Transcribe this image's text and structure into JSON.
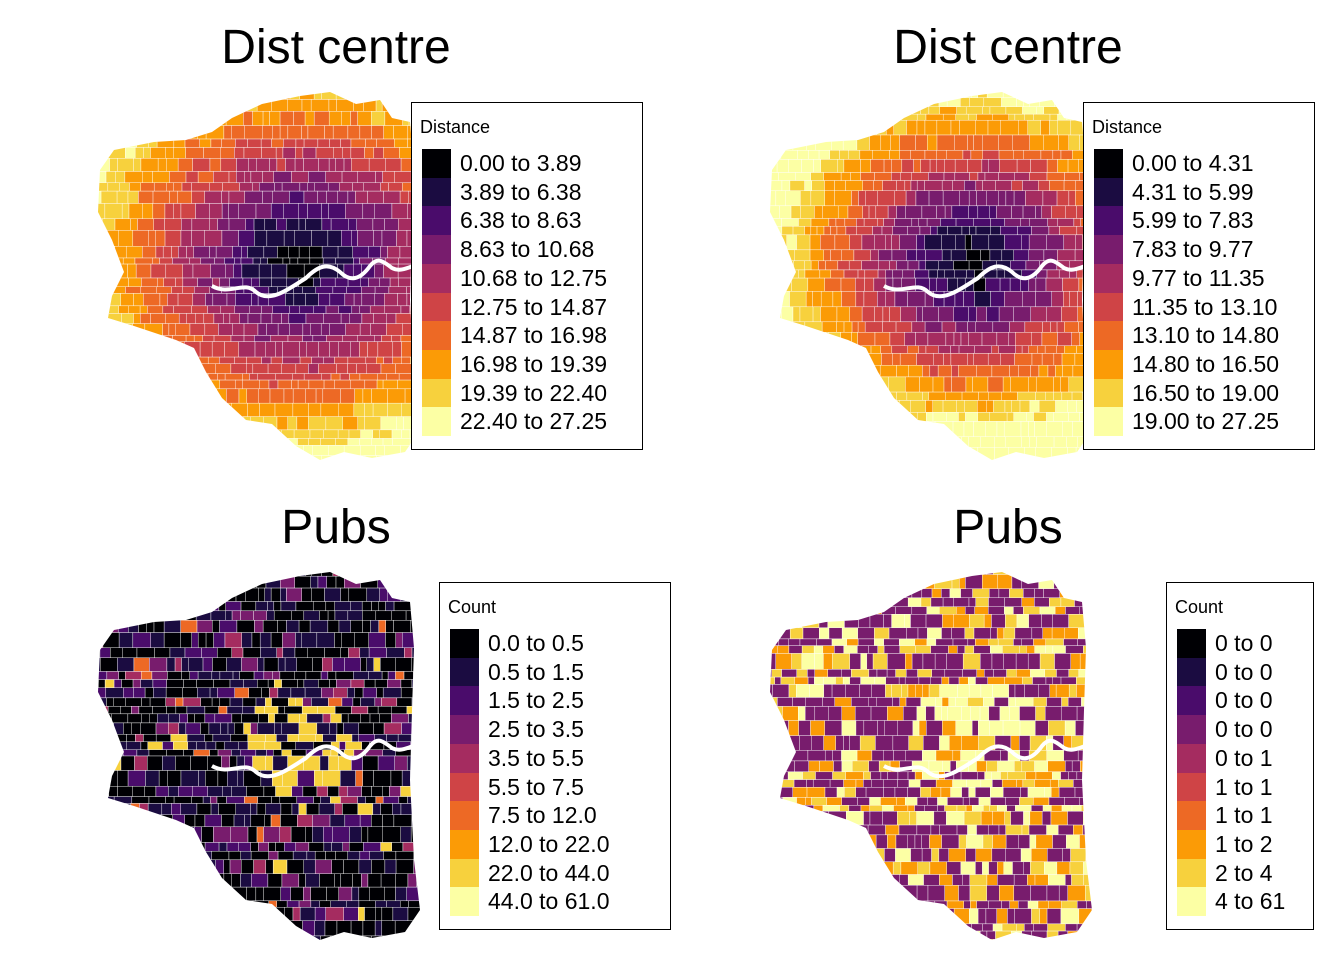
{
  "palette": [
    "#000004",
    "#1b0c41",
    "#4a0c6b",
    "#781c6d",
    "#a52c60",
    "#cf4446",
    "#ed6925",
    "#fb9b06",
    "#f7d13d",
    "#fcffa4"
  ],
  "panels": [
    {
      "title": "Dist centre",
      "legend": {
        "title": "Distance",
        "labels": [
          "0.00 to 3.89",
          "3.89 to 6.38",
          "6.38 to 8.63",
          "8.63 to 10.68",
          "10.68 to 12.75",
          "12.75 to 14.87",
          "14.87 to 16.98",
          "16.98 to 19.39",
          "19.39 to 22.40",
          "22.40 to 27.25"
        ]
      }
    },
    {
      "title": "Dist centre",
      "legend": {
        "title": "Distance",
        "labels": [
          "0.00 to 4.31",
          "4.31 to 5.99",
          "5.99 to 7.83",
          "7.83 to 9.77",
          "9.77 to 11.35",
          "11.35 to 13.10",
          "13.10 to 14.80",
          "14.80 to 16.50",
          "16.50 to 19.00",
          "19.00 to 27.25"
        ]
      }
    },
    {
      "title": "Pubs",
      "legend": {
        "title": "Count",
        "labels": [
          "0.0 to 0.5",
          "0.5 to 1.5",
          "1.5 to 2.5",
          "2.5 to 3.5",
          "3.5 to 5.5",
          "5.5 to 7.5",
          "7.5 to 12.0",
          "12.0 to 22.0",
          "22.0 to 44.0",
          "44.0 to 61.0"
        ]
      }
    },
    {
      "title": "Pubs",
      "legend": {
        "title": "Count",
        "labels": [
          "0 to 0",
          "0 to 0",
          "0 to 0",
          "0 to 0",
          "0 to 1",
          "1 to 1",
          "1 to 1",
          "1 to 2",
          "2 to 4",
          "4 to 61"
        ]
      }
    }
  ]
}
